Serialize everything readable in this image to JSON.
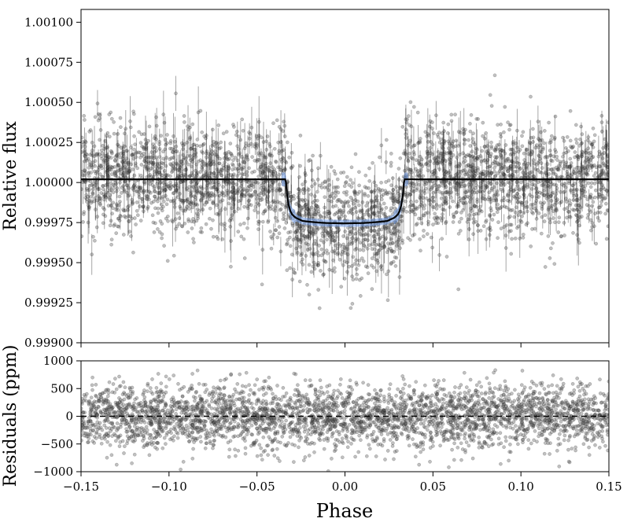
{
  "chart_data": [
    {
      "panel": "top",
      "type": "scatter",
      "ylabel": "Relative flux",
      "xlim": [
        -0.15,
        0.15
      ],
      "ylim": [
        0.999,
        1.00108
      ],
      "y_ticks": [
        "0.99900",
        "0.99925",
        "0.99950",
        "0.99975",
        "1.00000",
        "1.00025",
        "1.00050",
        "1.00075",
        "1.00100"
      ],
      "y_tick_values": [
        0.999,
        0.99925,
        0.9995,
        0.99975,
        1.0,
        1.00025,
        1.0005,
        1.00075,
        1.001
      ],
      "series": [
        {
          "kind": "points",
          "style": "gray semi-transparent markers with vertical error bars",
          "approx_count": 3600,
          "baseline": 1.0,
          "scatter_std": 0.00017,
          "transit_center": 0.0,
          "transit_half_width": 0.032,
          "transit_depth": 0.00022
        },
        {
          "kind": "model",
          "style": "black line",
          "x": [
            -0.15,
            -0.034,
            -0.0335,
            -0.033,
            -0.032,
            -0.031,
            -0.03,
            -0.028,
            -0.026,
            -0.024,
            -0.02,
            -0.015,
            -0.01,
            0.0,
            0.01,
            0.015,
            0.02,
            0.024,
            0.026,
            0.028,
            0.03,
            0.031,
            0.032,
            0.033,
            0.0335,
            0.034,
            0.15
          ],
          "y": [
            1.00002,
            1.00002,
            1.0,
            0.99993,
            0.99986,
            0.99982,
            0.9998,
            0.99978,
            0.99977,
            0.99976,
            0.999755,
            0.99975,
            0.999747,
            0.999745,
            0.999747,
            0.99975,
            0.999755,
            0.99976,
            0.99977,
            0.99978,
            0.9998,
            0.99982,
            0.99986,
            0.99993,
            1.0,
            1.00002,
            1.00002
          ]
        },
        {
          "kind": "model-band",
          "style": "light blue uncertainty band around transit",
          "color": "#6f9be6"
        }
      ]
    },
    {
      "panel": "bottom",
      "type": "scatter",
      "xlabel": "Phase",
      "ylabel": "Residuals (ppm)",
      "xlim": [
        -0.15,
        0.15
      ],
      "ylim": [
        -1000,
        1000
      ],
      "x_ticks": [
        "−0.15",
        "−0.10",
        "−0.05",
        "0.00",
        "0.05",
        "0.10",
        "0.15"
      ],
      "x_tick_values": [
        -0.15,
        -0.1,
        -0.05,
        0.0,
        0.05,
        0.1,
        0.15
      ],
      "y_ticks": [
        "−1000",
        "−500",
        "0",
        "500",
        "1000"
      ],
      "y_tick_values": [
        -1000,
        -500,
        0,
        500,
        1000
      ],
      "series": [
        {
          "kind": "points",
          "style": "gray semi-transparent markers",
          "approx_count": 3600,
          "center": 0,
          "scatter_std": 280
        },
        {
          "kind": "zero-line",
          "style": "black dashed line",
          "y": 0
        }
      ]
    }
  ]
}
